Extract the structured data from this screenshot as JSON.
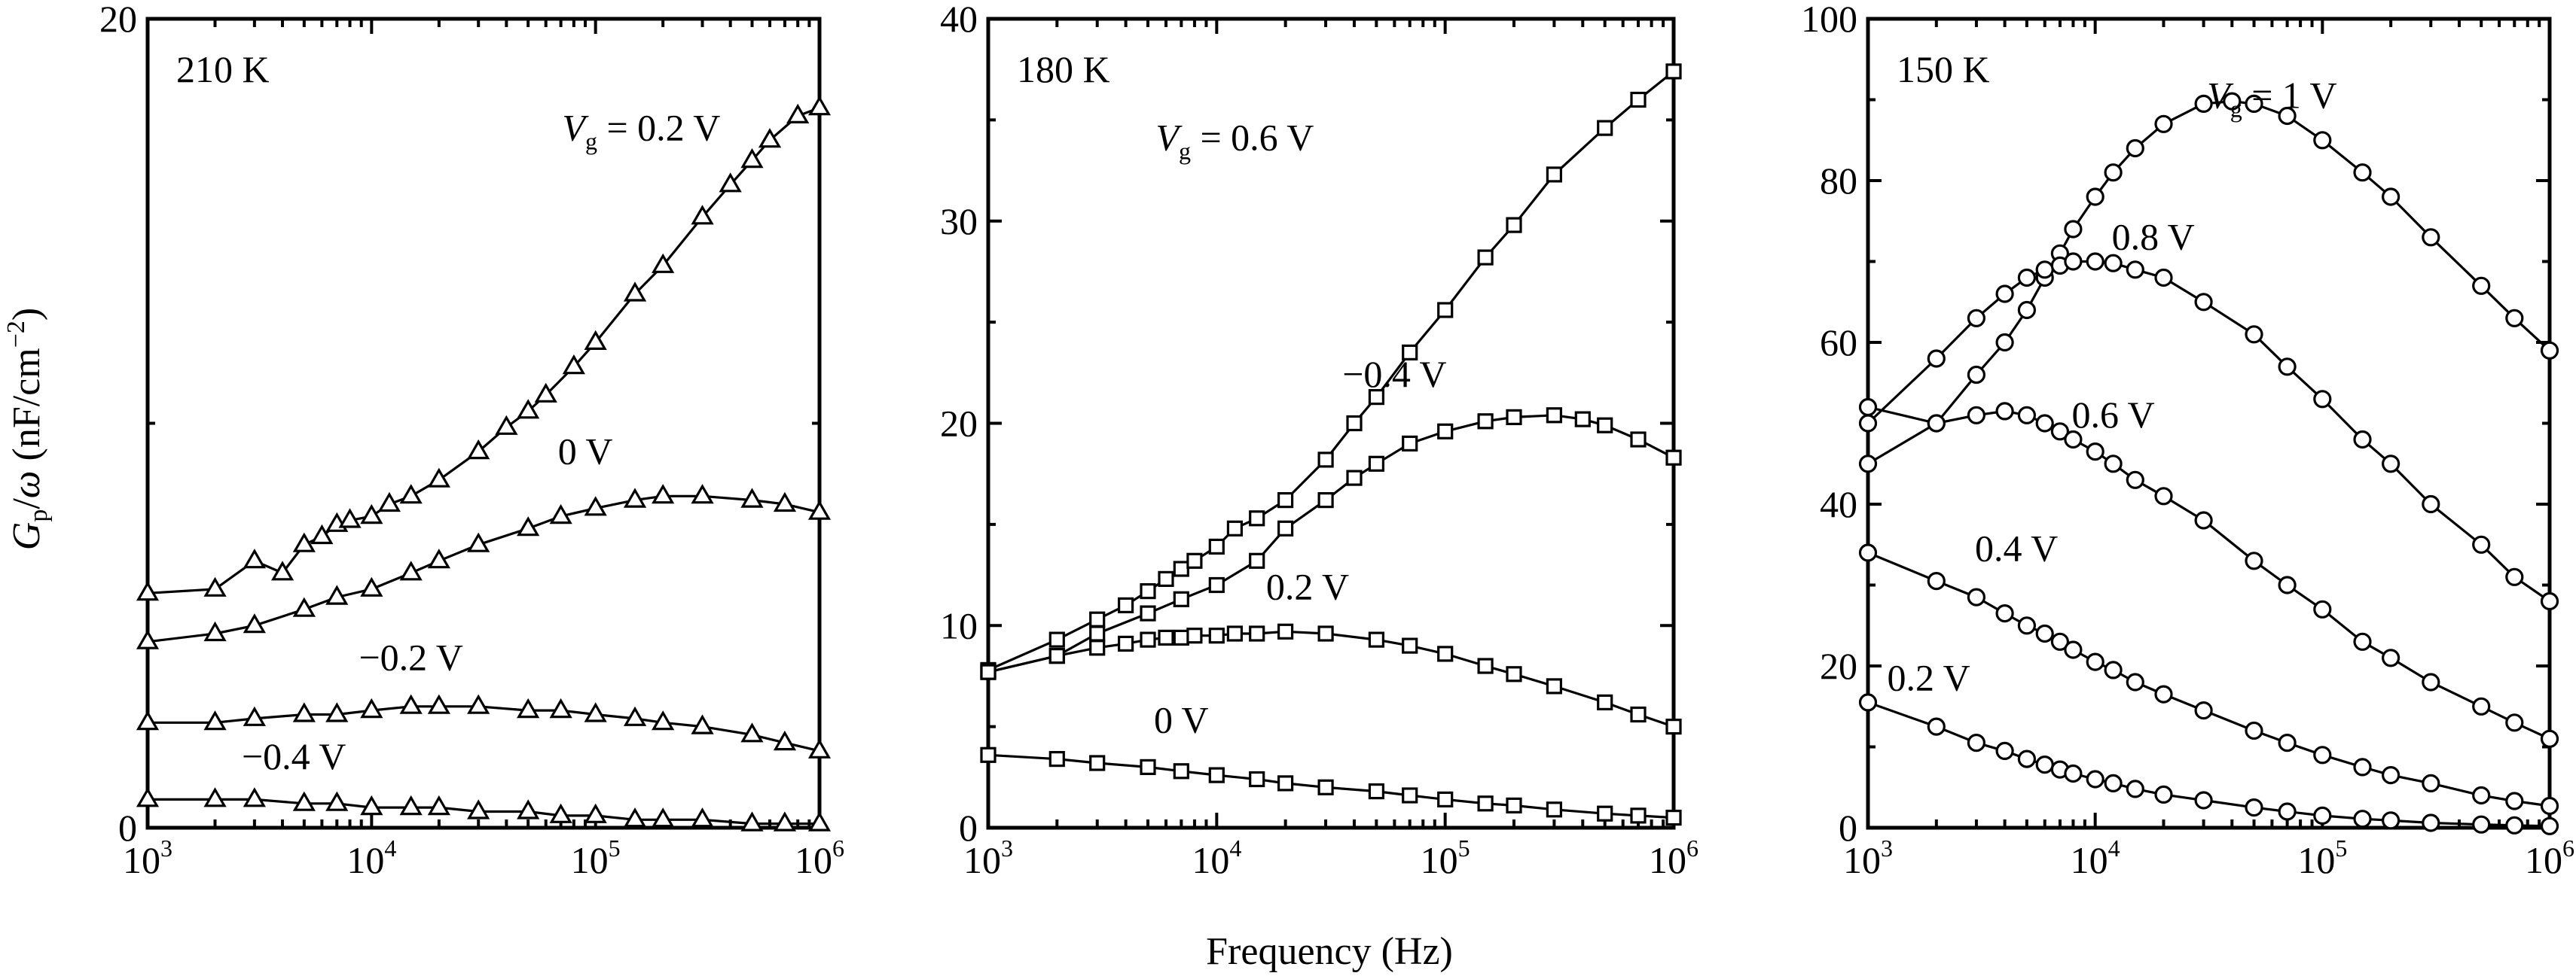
{
  "figure": {
    "xlabel": "Frequency (Hz)",
    "ylabel": {
      "symbol": "G",
      "sub": "p",
      "slash": "/",
      "omega": "ω",
      "units": " (nF/cm",
      "units_sup": "−2",
      "units_close": ")"
    }
  },
  "chart_data": [
    {
      "type": "line",
      "title": "210 K",
      "x_scale": "log",
      "xlim": [
        1000,
        1000000
      ],
      "ylim": [
        0,
        20
      ],
      "yticks": [
        0,
        20
      ],
      "xticks": [
        {
          "value": 1000,
          "base": "10",
          "exp": "3"
        },
        {
          "value": 10000,
          "base": "10",
          "exp": "4"
        },
        {
          "value": 100000,
          "base": "10",
          "exp": "5"
        },
        {
          "value": 1000000,
          "base": "10",
          "exp": "6"
        }
      ],
      "marker": "triangle",
      "series": [
        {
          "name_parts": {
            "var": "V",
            "sub": "g",
            "rest": " = 0.2 V"
          },
          "label_at": {
            "x": 160000,
            "y": 17.0
          },
          "x": [
            1000,
            2000,
            3000,
            4000,
            5000,
            6000,
            7000,
            8000,
            10000,
            12000,
            15000,
            20000,
            30000,
            40000,
            50000,
            60000,
            80000,
            100000,
            150000,
            200000,
            300000,
            400000,
            500000,
            600000,
            800000,
            1000000
          ],
          "y": [
            5.8,
            5.9,
            6.6,
            6.3,
            7.0,
            7.2,
            7.5,
            7.6,
            7.7,
            8.0,
            8.2,
            8.6,
            9.3,
            9.9,
            10.3,
            10.7,
            11.4,
            12.0,
            13.2,
            13.9,
            15.1,
            15.9,
            16.5,
            17.0,
            17.6,
            17.8
          ]
        },
        {
          "name": "0 V",
          "label_at": {
            "x": 90000,
            "y": 9.0
          },
          "x": [
            1000,
            2000,
            3000,
            5000,
            7000,
            10000,
            15000,
            20000,
            30000,
            50000,
            70000,
            100000,
            150000,
            200000,
            300000,
            500000,
            700000,
            1000000
          ],
          "y": [
            4.6,
            4.8,
            5.0,
            5.4,
            5.7,
            5.9,
            6.3,
            6.6,
            7.0,
            7.4,
            7.7,
            7.9,
            8.1,
            8.2,
            8.2,
            8.1,
            8.0,
            7.8
          ]
        },
        {
          "name": "−0.2 V",
          "label_at": {
            "x": 15000,
            "y": 3.9
          },
          "x": [
            1000,
            2000,
            3000,
            5000,
            7000,
            10000,
            15000,
            20000,
            30000,
            50000,
            70000,
            100000,
            150000,
            200000,
            300000,
            500000,
            700000,
            1000000
          ],
          "y": [
            2.6,
            2.6,
            2.7,
            2.8,
            2.8,
            2.9,
            3.0,
            3.0,
            3.0,
            2.9,
            2.9,
            2.8,
            2.7,
            2.6,
            2.5,
            2.3,
            2.1,
            1.9
          ]
        },
        {
          "name": "−0.4 V",
          "label_at": {
            "x": 4500,
            "y": 1.45
          },
          "x": [
            1000,
            2000,
            3000,
            5000,
            7000,
            10000,
            15000,
            20000,
            30000,
            50000,
            70000,
            100000,
            150000,
            200000,
            300000,
            500000,
            700000,
            1000000
          ],
          "y": [
            0.7,
            0.7,
            0.7,
            0.6,
            0.6,
            0.5,
            0.5,
            0.5,
            0.4,
            0.4,
            0.3,
            0.3,
            0.2,
            0.2,
            0.2,
            0.1,
            0.1,
            0.1
          ]
        }
      ]
    },
    {
      "type": "line",
      "title": "180 K",
      "x_scale": "log",
      "xlim": [
        1000,
        1000000
      ],
      "ylim": [
        0,
        40
      ],
      "yticks": [
        0,
        10,
        20,
        30,
        40
      ],
      "xticks": [
        {
          "value": 1000,
          "base": "10",
          "exp": "3"
        },
        {
          "value": 10000,
          "base": "10",
          "exp": "4"
        },
        {
          "value": 100000,
          "base": "10",
          "exp": "5"
        },
        {
          "value": 1000000,
          "base": "10",
          "exp": "6"
        }
      ],
      "marker": "square",
      "series": [
        {
          "name_parts": {
            "var": "V",
            "sub": "g",
            "rest": " = 0.6 V"
          },
          "label_at": {
            "x": 12000,
            "y": 33.5
          },
          "x": [
            1000,
            2000,
            3000,
            4000,
            5000,
            6000,
            7000,
            8000,
            10000,
            12000,
            15000,
            20000,
            30000,
            40000,
            50000,
            70000,
            100000,
            150000,
            200000,
            300000,
            500000,
            700000,
            1000000
          ],
          "y": [
            7.8,
            9.3,
            10.3,
            11.0,
            11.7,
            12.3,
            12.8,
            13.2,
            13.9,
            14.8,
            15.3,
            16.2,
            18.2,
            20.0,
            21.3,
            23.5,
            25.6,
            28.2,
            29.8,
            32.3,
            34.6,
            36.0,
            37.4
          ]
        },
        {
          "name": "−0.4 V",
          "label_at": {
            "x": 60000,
            "y": 21.8
          },
          "x": [
            1000,
            2000,
            3000,
            5000,
            7000,
            10000,
            15000,
            20000,
            30000,
            40000,
            50000,
            70000,
            100000,
            150000,
            200000,
            300000,
            400000,
            500000,
            700000,
            1000000
          ],
          "y": [
            7.7,
            8.5,
            9.6,
            10.6,
            11.3,
            12.0,
            13.2,
            14.8,
            16.2,
            17.3,
            18.0,
            19.0,
            19.6,
            20.1,
            20.3,
            20.4,
            20.2,
            19.9,
            19.2,
            18.3
          ]
        },
        {
          "name": "0.2 V",
          "label_at": {
            "x": 25000,
            "y": 11.3
          },
          "x": [
            1000,
            2000,
            3000,
            4000,
            5000,
            6000,
            7000,
            8000,
            10000,
            12000,
            15000,
            20000,
            30000,
            50000,
            70000,
            100000,
            150000,
            200000,
            300000,
            500000,
            700000,
            1000000
          ],
          "y": [
            7.7,
            8.5,
            8.9,
            9.1,
            9.3,
            9.4,
            9.4,
            9.5,
            9.5,
            9.6,
            9.6,
            9.7,
            9.6,
            9.3,
            9.0,
            8.6,
            8.0,
            7.6,
            7.0,
            6.2,
            5.6,
            5.0
          ]
        },
        {
          "name": "0 V",
          "label_at": {
            "x": 7000,
            "y": 4.7
          },
          "x": [
            1000,
            2000,
            3000,
            5000,
            7000,
            10000,
            15000,
            20000,
            30000,
            50000,
            70000,
            100000,
            150000,
            200000,
            300000,
            500000,
            700000,
            1000000
          ],
          "y": [
            3.6,
            3.4,
            3.2,
            3.0,
            2.8,
            2.6,
            2.4,
            2.2,
            2.0,
            1.8,
            1.6,
            1.4,
            1.2,
            1.1,
            0.9,
            0.7,
            0.6,
            0.5
          ]
        }
      ]
    },
    {
      "type": "line",
      "title": "150 K",
      "x_scale": "log",
      "xlim": [
        1000,
        1000000
      ],
      "ylim": [
        0,
        100
      ],
      "yticks": [
        0,
        20,
        40,
        60,
        80,
        100
      ],
      "xticks": [
        {
          "value": 1000,
          "base": "10",
          "exp": "3"
        },
        {
          "value": 10000,
          "base": "10",
          "exp": "4"
        },
        {
          "value": 100000,
          "base": "10",
          "exp": "5"
        },
        {
          "value": 1000000,
          "base": "10",
          "exp": "6"
        }
      ],
      "marker": "circle",
      "series": [
        {
          "name_parts": {
            "var": "V",
            "sub": "g",
            "rest": " = 1 V"
          },
          "label_at": {
            "x": 60000,
            "y": 89
          },
          "x": [
            1000,
            2000,
            3000,
            4000,
            5000,
            6000,
            7000,
            8000,
            10000,
            12000,
            15000,
            20000,
            30000,
            40000,
            50000,
            70000,
            100000,
            150000,
            200000,
            300000,
            500000,
            700000,
            1000000
          ],
          "y": [
            45,
            50,
            56,
            60,
            64,
            68,
            71,
            74,
            78,
            81,
            84,
            87,
            89.5,
            89.8,
            89.5,
            88,
            85,
            81,
            78,
            73,
            67,
            63,
            59
          ]
        },
        {
          "name": "0.8 V",
          "label_at": {
            "x": 18000,
            "y": 71.5
          },
          "x": [
            1000,
            2000,
            3000,
            4000,
            5000,
            6000,
            7000,
            8000,
            10000,
            12000,
            15000,
            20000,
            30000,
            50000,
            70000,
            100000,
            150000,
            200000,
            300000,
            500000,
            700000,
            1000000
          ],
          "y": [
            50,
            58,
            63,
            66,
            68,
            69,
            69.5,
            70,
            70,
            69.8,
            69,
            68,
            65,
            61,
            57,
            53,
            48,
            45,
            40,
            35,
            31,
            28
          ]
        },
        {
          "name": "0.6 V",
          "label_at": {
            "x": 12000,
            "y": 49.5
          },
          "x": [
            1000,
            2000,
            3000,
            4000,
            5000,
            6000,
            7000,
            8000,
            10000,
            12000,
            15000,
            20000,
            30000,
            50000,
            70000,
            100000,
            150000,
            200000,
            300000,
            500000,
            700000,
            1000000
          ],
          "y": [
            52,
            50,
            51,
            51.5,
            51,
            50,
            49,
            48,
            46.5,
            45,
            43,
            41,
            38,
            33,
            30,
            27,
            23,
            21,
            18,
            15,
            13,
            11
          ]
        },
        {
          "name": "0.4 V",
          "label_at": {
            "x": 4500,
            "y": 33
          },
          "x": [
            1000,
            2000,
            3000,
            4000,
            5000,
            6000,
            7000,
            8000,
            10000,
            12000,
            15000,
            20000,
            30000,
            50000,
            70000,
            100000,
            150000,
            200000,
            300000,
            500000,
            700000,
            1000000
          ],
          "y": [
            34,
            30.5,
            28.5,
            26.5,
            25,
            24,
            23,
            22,
            20.5,
            19.5,
            18,
            16.5,
            14.5,
            12,
            10.5,
            9,
            7.5,
            6.5,
            5.5,
            4,
            3.3,
            2.7
          ]
        },
        {
          "name": "0.2 V",
          "label_at": {
            "x": 1850,
            "y": 17
          },
          "x": [
            1000,
            2000,
            3000,
            4000,
            5000,
            6000,
            7000,
            8000,
            10000,
            12000,
            15000,
            20000,
            30000,
            50000,
            70000,
            100000,
            150000,
            200000,
            300000,
            500000,
            700000,
            1000000
          ],
          "y": [
            15.5,
            12.5,
            10.5,
            9.5,
            8.5,
            7.8,
            7.2,
            6.7,
            6,
            5.5,
            4.8,
            4.1,
            3.4,
            2.5,
            2,
            1.5,
            1.1,
            0.9,
            0.6,
            0.4,
            0.3,
            0.2
          ]
        }
      ]
    }
  ]
}
